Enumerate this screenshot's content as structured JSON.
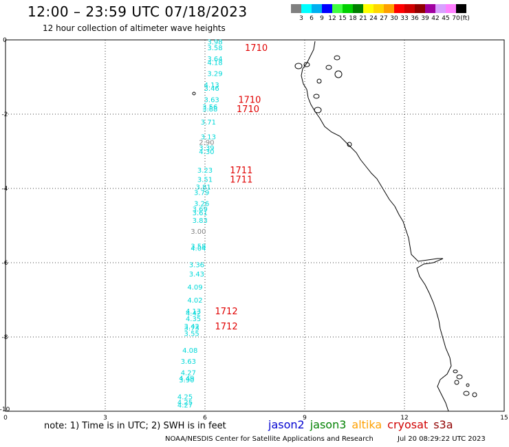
{
  "header": {
    "title": "12:00 – 23:59 UTC 07/18/2023",
    "subtitle": "12 hour collection of altimeter wave heights"
  },
  "colorbar": {
    "unit_label": "(ft)",
    "ticks": [
      "3",
      "6",
      "9",
      "12",
      "15",
      "18",
      "21",
      "24",
      "27",
      "30",
      "33",
      "36",
      "39",
      "42",
      "45",
      "70"
    ],
    "colors": [
      "#808080",
      "#00ffff",
      "#00b0f0",
      "#0000ff",
      "#40ff40",
      "#00d000",
      "#008000",
      "#ffff00",
      "#ffd700",
      "#ffa000",
      "#ff0000",
      "#d00000",
      "#900000",
      "#a000a0",
      "#d8a0ff",
      "#ff80ff",
      "#000000"
    ]
  },
  "footer": {
    "note": "note:  1) Time is in UTC;  2) SWH is in feet",
    "credit": "NOAA/NESDIS Center for Satellite Applications and Research",
    "timestamp": "Jul 20 08:29:22 UTC 2023"
  },
  "legend": [
    {
      "name": "jason2",
      "color": "#0000d0"
    },
    {
      "name": "jason3",
      "color": "#008000"
    },
    {
      "name": "altika",
      "color": "#ffa000"
    },
    {
      "name": "cryosat",
      "color": "#d00000"
    },
    {
      "name": "s3a",
      "color": "#900000"
    }
  ],
  "chart_data": {
    "type": "scatter",
    "title": "12:00 – 23:59 UTC 07/18/2023",
    "subtitle": "12 hour collection of altimeter wave heights",
    "xlim": [
      0,
      15
    ],
    "ylim": [
      -10,
      0
    ],
    "xticks": [
      0,
      3,
      6,
      9,
      12,
      15
    ],
    "yticks": [
      0,
      -2,
      -4,
      -6,
      -8,
      -10
    ],
    "grid": true,
    "swh_points": [
      {
        "x": 6.3,
        "y": -0.05,
        "label": "3.98",
        "color": "#00d8d8"
      },
      {
        "x": 6.3,
        "y": -0.2,
        "label": "3.58",
        "color": "#00d8d8"
      },
      {
        "x": 6.3,
        "y": -0.5,
        "label": "3.64",
        "color": "#00d8d8"
      },
      {
        "x": 6.3,
        "y": -0.6,
        "label": "4.18",
        "color": "#00d8d8"
      },
      {
        "x": 6.3,
        "y": -0.9,
        "label": "3.29",
        "color": "#00d8d8"
      },
      {
        "x": 6.2,
        "y": -1.2,
        "label": "4.13",
        "color": "#00d8d8"
      },
      {
        "x": 6.2,
        "y": -1.3,
        "label": "3.46",
        "color": "#00d8d8"
      },
      {
        "x": 6.2,
        "y": -1.6,
        "label": "3.63",
        "color": "#00d8d8"
      },
      {
        "x": 6.15,
        "y": -1.8,
        "label": "3.56",
        "color": "#00d8d8"
      },
      {
        "x": 6.15,
        "y": -1.85,
        "label": "3.88",
        "color": "#00d8d8"
      },
      {
        "x": 6.1,
        "y": -2.2,
        "label": "3.71",
        "color": "#00d8d8"
      },
      {
        "x": 6.1,
        "y": -2.6,
        "label": "3.13",
        "color": "#00d8d8"
      },
      {
        "x": 6.05,
        "y": -2.75,
        "label": "2.90",
        "color": "#808080"
      },
      {
        "x": 6.05,
        "y": -2.9,
        "label": "3.39",
        "color": "#00d8d8"
      },
      {
        "x": 6.05,
        "y": -3.0,
        "label": "4.30",
        "color": "#00d8d8"
      },
      {
        "x": 6.0,
        "y": -3.5,
        "label": "3.23",
        "color": "#00d8d8"
      },
      {
        "x": 6.0,
        "y": -3.75,
        "label": "3.51",
        "color": "#00d8d8"
      },
      {
        "x": 5.95,
        "y": -3.95,
        "label": "3.81",
        "color": "#00d8d8"
      },
      {
        "x": 5.9,
        "y": -4.1,
        "label": "3.79",
        "color": "#00d8d8"
      },
      {
        "x": 5.9,
        "y": -4.4,
        "label": "3.26",
        "color": "#00d8d8"
      },
      {
        "x": 5.85,
        "y": -4.55,
        "label": "3.69",
        "color": "#00d8d8"
      },
      {
        "x": 5.85,
        "y": -4.65,
        "label": "3.61",
        "color": "#00d8d8"
      },
      {
        "x": 5.85,
        "y": -4.85,
        "label": "3.83",
        "color": "#00d8d8"
      },
      {
        "x": 5.8,
        "y": -5.15,
        "label": "3.00",
        "color": "#808080"
      },
      {
        "x": 5.8,
        "y": -5.55,
        "label": "3.58",
        "color": "#00d8d8"
      },
      {
        "x": 5.8,
        "y": -5.6,
        "label": "4.04",
        "color": "#00d8d8"
      },
      {
        "x": 5.75,
        "y": -6.05,
        "label": "3.36",
        "color": "#00d8d8"
      },
      {
        "x": 5.75,
        "y": -6.3,
        "label": "3.43",
        "color": "#00d8d8"
      },
      {
        "x": 5.7,
        "y": -6.65,
        "label": "4.09",
        "color": "#00d8d8"
      },
      {
        "x": 5.7,
        "y": -7.0,
        "label": "4.02",
        "color": "#00d8d8"
      },
      {
        "x": 5.65,
        "y": -7.3,
        "label": "4.13",
        "color": "#00d8d8"
      },
      {
        "x": 5.65,
        "y": -7.35,
        "label": "4.42",
        "color": "#00d8d8"
      },
      {
        "x": 5.65,
        "y": -7.5,
        "label": "4.35",
        "color": "#00d8d8"
      },
      {
        "x": 5.6,
        "y": -7.7,
        "label": "3.42",
        "color": "#00d8d8"
      },
      {
        "x": 5.6,
        "y": -7.75,
        "label": "3.73",
        "color": "#00d8d8"
      },
      {
        "x": 5.6,
        "y": -7.9,
        "label": "3.55",
        "color": "#00d8d8"
      },
      {
        "x": 5.55,
        "y": -8.35,
        "label": "4.08",
        "color": "#00d8d8"
      },
      {
        "x": 5.5,
        "y": -8.65,
        "label": "3.63",
        "color": "#00d8d8"
      },
      {
        "x": 5.5,
        "y": -8.95,
        "label": "4.27",
        "color": "#00d8d8"
      },
      {
        "x": 5.45,
        "y": -9.1,
        "label": "4.49",
        "color": "#00d8d8"
      },
      {
        "x": 5.45,
        "y": -9.15,
        "label": "3.90",
        "color": "#00d8d8"
      },
      {
        "x": 5.4,
        "y": -9.6,
        "label": "4.25",
        "color": "#00d8d8"
      },
      {
        "x": 5.4,
        "y": -9.75,
        "label": "4.25",
        "color": "#00d8d8"
      },
      {
        "x": 5.4,
        "y": -9.82,
        "label": "4.27",
        "color": "#00d8d8"
      }
    ],
    "time_labels": [
      {
        "x": 7.2,
        "y": -0.2,
        "label": "1710",
        "color": "#e00000"
      },
      {
        "x": 7.0,
        "y": -1.6,
        "label": "1710",
        "color": "#e00000"
      },
      {
        "x": 6.95,
        "y": -1.85,
        "label": "1710",
        "color": "#e00000"
      },
      {
        "x": 6.75,
        "y": -3.5,
        "label": "1711",
        "color": "#e00000"
      },
      {
        "x": 6.75,
        "y": -3.75,
        "label": "1711",
        "color": "#e00000"
      },
      {
        "x": 6.3,
        "y": -7.3,
        "label": "1712",
        "color": "#e00000"
      },
      {
        "x": 6.3,
        "y": -7.7,
        "label": "1712",
        "color": "#e00000"
      }
    ]
  }
}
